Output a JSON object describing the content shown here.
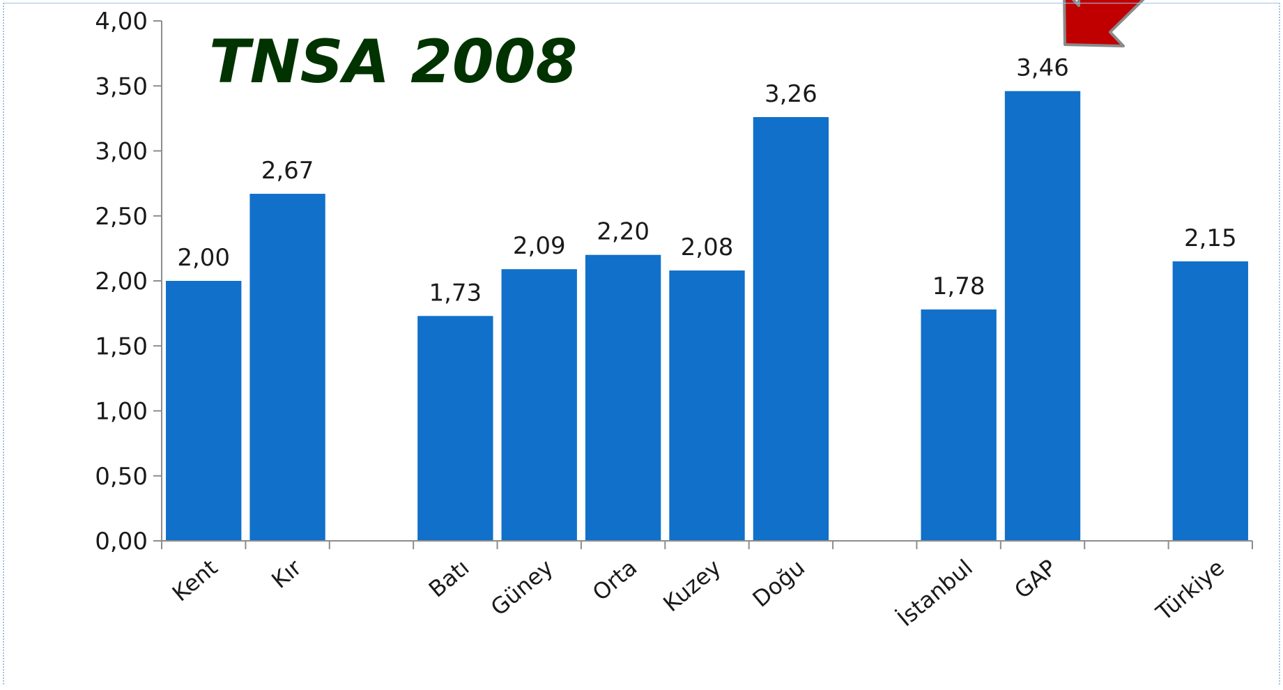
{
  "chart_data": {
    "type": "bar",
    "title": "TNSA 2008",
    "categories": [
      "Kent",
      "Kır",
      "",
      "Batı",
      "Güney",
      "Orta",
      "Kuzey",
      "Doğu",
      "",
      "İstanbul",
      "GAP",
      "",
      "Türkiye"
    ],
    "values": [
      2.0,
      2.67,
      null,
      1.73,
      2.09,
      2.2,
      2.08,
      3.26,
      null,
      1.78,
      3.46,
      null,
      2.15
    ],
    "data_labels": [
      "2,00",
      "2,67",
      "",
      "1,73",
      "2,09",
      "2,20",
      "2,08",
      "3,26",
      "",
      "1,78",
      "3,46",
      "",
      "2,15"
    ],
    "ylim": [
      0,
      4
    ],
    "yticks": [
      "0,00",
      "0,50",
      "1,00",
      "1,50",
      "2,00",
      "2,50",
      "3,00",
      "3,50",
      "4,00"
    ],
    "xlabel": "",
    "ylabel": "",
    "grid": false,
    "legend": "none",
    "bar_color": "#1170C9",
    "annotation": {
      "type": "arrow",
      "points_to": "GAP",
      "color": "#C00000"
    }
  }
}
